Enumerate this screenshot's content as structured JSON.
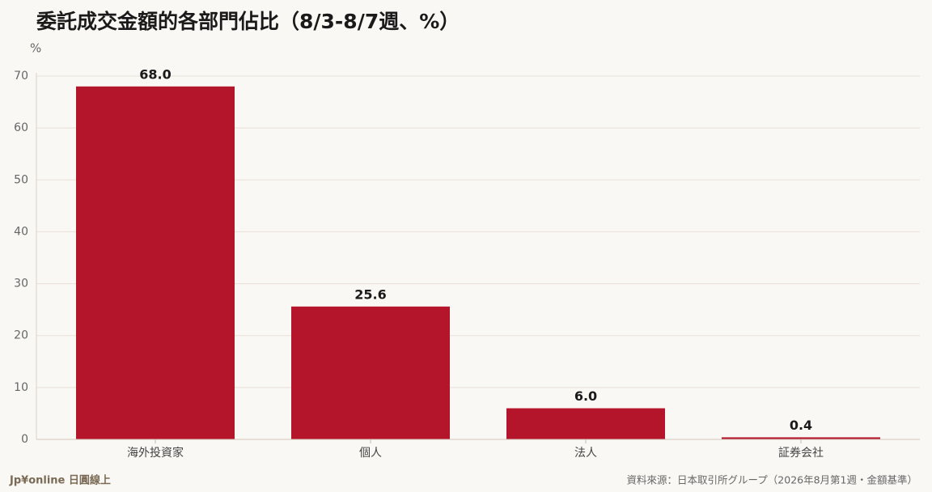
{
  "chart_data": {
    "type": "bar",
    "title": "委託成交金額的各部門佔比（8/3-8/7週、%）",
    "y_label": "%",
    "categories": [
      "海外投資家",
      "個人",
      "法人",
      "証券会社"
    ],
    "values": [
      68,
      25.6,
      6,
      0.4
    ],
    "value_labels": [
      "68.0",
      "25.6",
      "6.0",
      "0.4"
    ],
    "color": "#b5152b",
    "ylim": [
      0,
      70
    ],
    "yticks": [
      0,
      10,
      20,
      30,
      40,
      50,
      60,
      70
    ],
    "grid": true,
    "brand": "Jp¥online 日圓線上",
    "source": "資料來源：日本取引所グループ（2026年8月第1週・金額基準）"
  }
}
